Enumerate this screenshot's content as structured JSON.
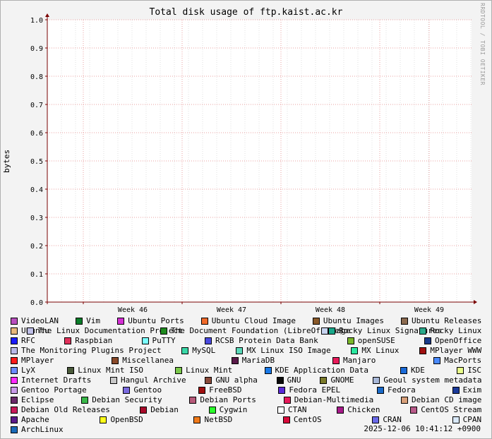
{
  "chart_data": {
    "type": "area",
    "title": "Total disk usage of ftp.kaist.ac.kr",
    "ylabel": "bytes",
    "xlabel": "",
    "ylim": [
      0,
      1
    ],
    "yticks": [
      "0.0",
      "0.1",
      "0.2",
      "0.3",
      "0.4",
      "0.5",
      "0.6",
      "0.7",
      "0.8",
      "0.9",
      "1.0"
    ],
    "xticks": [
      "Week 46",
      "Week 47",
      "Week 48",
      "Week 49"
    ],
    "grid": true,
    "legend_position": "bottom",
    "series": [
      {
        "name": "VideoLAN",
        "color": "#b94fbf",
        "values": []
      },
      {
        "name": "Vim",
        "color": "#0a7d2a",
        "values": []
      },
      {
        "name": "Ubuntu Ports",
        "color": "#d42fd4",
        "values": []
      },
      {
        "name": "Ubuntu Cloud Image",
        "color": "#f06a2a",
        "values": []
      },
      {
        "name": "Ubuntu Images",
        "color": "#8a5a2a",
        "values": []
      },
      {
        "name": "Ubuntu Releases",
        "color": "#8b6a4f",
        "values": []
      },
      {
        "name": "Ubuntu",
        "color": "#e8b87a",
        "values": []
      },
      {
        "name": "The Linux Documentation Project",
        "color": "#c0c0e8",
        "values": []
      },
      {
        "name": "The Document Foundation (LibreOffice)",
        "color": "#1e8a1e",
        "values": []
      },
      {
        "name": "Sage",
        "color": "#c8d4f0",
        "values": []
      },
      {
        "name": "Rocky Linux Signatures",
        "color": "#1aa88a",
        "values": []
      },
      {
        "name": "Rocky Linux",
        "color": "#2aa88a",
        "values": []
      },
      {
        "name": "RFC",
        "color": "#1a1aff",
        "values": []
      },
      {
        "name": "Raspbian",
        "color": "#e0305a",
        "values": []
      },
      {
        "name": "PuTTY",
        "color": "#7affff",
        "values": []
      },
      {
        "name": "RCSB Protein Data Bank",
        "color": "#4a4adf",
        "values": []
      },
      {
        "name": "openSUSE",
        "color": "#7ab82a",
        "values": []
      },
      {
        "name": "OpenOffice",
        "color": "#1a3a8a",
        "values": []
      },
      {
        "name": "The Monitoring Plugins Project",
        "color": "#b8b8e8",
        "values": []
      },
      {
        "name": "MySQL",
        "color": "#3ad8a8",
        "values": []
      },
      {
        "name": "MX Linux ISO Image",
        "color": "#5ad8b8",
        "values": []
      },
      {
        "name": "MX Linux",
        "color": "#2ae8a0",
        "values": []
      },
      {
        "name": "MPlayer WWW",
        "color": "#a01010",
        "values": []
      },
      {
        "name": "MPlayer",
        "color": "#ff1a1a",
        "values": []
      },
      {
        "name": "Miscellanea",
        "color": "#8a4a2a",
        "values": []
      },
      {
        "name": "MariaDB",
        "color": "#5a1a4a",
        "values": []
      },
      {
        "name": "Manjaro",
        "color": "#e81a5a",
        "values": []
      },
      {
        "name": "MacPorts",
        "color": "#4a8aff",
        "values": []
      },
      {
        "name": "LyX",
        "color": "#6a8aff",
        "values": []
      },
      {
        "name": "Linux Mint ISO",
        "color": "#4a5a3a",
        "values": []
      },
      {
        "name": "Linux Mint",
        "color": "#7ac84a",
        "values": []
      },
      {
        "name": "KDE Application Data",
        "color": "#1a7ae8",
        "values": []
      },
      {
        "name": "KDE",
        "color": "#1a6ad8",
        "values": []
      },
      {
        "name": "ISC",
        "color": "#e8ff8a",
        "values": []
      },
      {
        "name": "Internet Drafts",
        "color": "#ff2aff",
        "values": []
      },
      {
        "name": "Hangul Archive",
        "color": "#c8c8c8",
        "values": []
      },
      {
        "name": "GNU alpha",
        "color": "#8a4a3a",
        "values": []
      },
      {
        "name": "GNU",
        "color": "#0a0a0a",
        "values": []
      },
      {
        "name": "GNOME",
        "color": "#7a7a2a",
        "values": []
      },
      {
        "name": "Geoul system metadata",
        "color": "#a8b8d8",
        "values": []
      },
      {
        "name": "Gentoo Portage",
        "color": "#c89ae8",
        "values": []
      },
      {
        "name": "Gentoo",
        "color": "#7a6adf",
        "values": []
      },
      {
        "name": "FreeBSD",
        "color": "#a01010",
        "values": []
      },
      {
        "name": "Fedora EPEL",
        "color": "#5a2ad8",
        "values": []
      },
      {
        "name": "Fedora",
        "color": "#1a6ac8",
        "values": []
      },
      {
        "name": "Exim",
        "color": "#1a3a9a",
        "values": []
      },
      {
        "name": "Eclipse",
        "color": "#6a2a6a",
        "values": []
      },
      {
        "name": "Debian Security",
        "color": "#3ab84a",
        "values": []
      },
      {
        "name": "Debian Ports",
        "color": "#b85a7a",
        "values": []
      },
      {
        "name": "Debian-Multimedia",
        "color": "#e81a5a",
        "values": []
      },
      {
        "name": "Debian CD image",
        "color": "#d8a07a",
        "values": []
      },
      {
        "name": "Debian Old Releases",
        "color": "#c81a5a",
        "values": []
      },
      {
        "name": "Debian",
        "color": "#a80a2a",
        "values": []
      },
      {
        "name": "Cygwin",
        "color": "#2aff2a",
        "values": []
      },
      {
        "name": "CTAN",
        "color": "#ffffff",
        "values": []
      },
      {
        "name": "Chicken",
        "color": "#a81a8a",
        "values": []
      },
      {
        "name": "CentOS Stream",
        "color": "#b85a8a",
        "values": []
      },
      {
        "name": "Apache",
        "color": "#5a1a8a",
        "values": []
      },
      {
        "name": "OpenBSD",
        "color": "#ffff1a",
        "values": []
      },
      {
        "name": "NetBSD",
        "color": "#f07a1a",
        "values": []
      },
      {
        "name": "CentOS",
        "color": "#d80a3a",
        "values": []
      },
      {
        "name": "CRAN",
        "color": "#6a6ae8",
        "values": []
      },
      {
        "name": "CPAN",
        "color": "#d8e8f8",
        "values": []
      },
      {
        "name": "ArchLinux",
        "color": "#1a6ab8",
        "values": []
      }
    ]
  },
  "watermark": "RRDTOOL / TOBI OETIKER",
  "timestamp": "2025-12-06 10:41:12 +0900",
  "colors": {
    "plot_bg": "#ffffff",
    "canvas_bg": "#f3f3f3",
    "grid_major": "#e8a0a0",
    "grid_minor": "#e0e0e0",
    "axis": "#7a0000"
  }
}
